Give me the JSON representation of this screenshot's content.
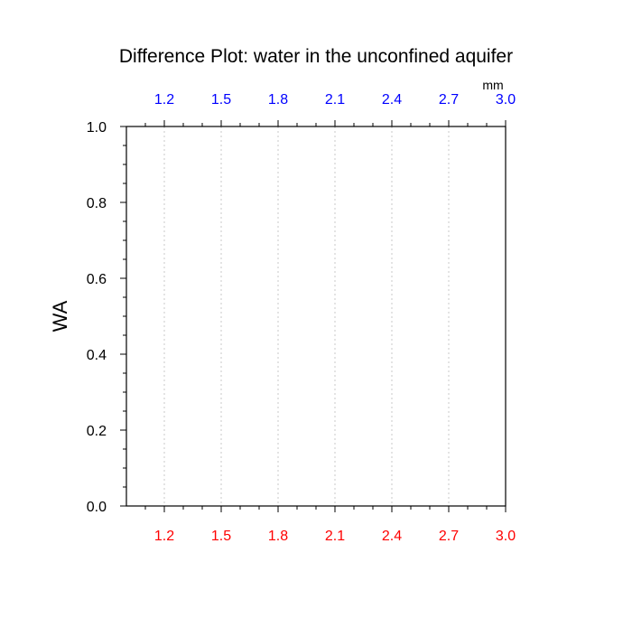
{
  "chart_data": {
    "type": "line",
    "title": "Difference Plot: water in the unconfined aquifer",
    "ylabel": "WA",
    "top_axis_unit": "mm",
    "xlim": [
      1.0,
      3.0
    ],
    "ylim": [
      0.0,
      1.0
    ],
    "x_ticks": [
      "1.2",
      "1.5",
      "1.8",
      "2.1",
      "2.4",
      "2.7",
      "3.0"
    ],
    "y_ticks": [
      "0.0",
      "0.2",
      "0.4",
      "0.6",
      "0.8",
      "1.0"
    ],
    "series": [],
    "grid": "vertical dotted at x ticks",
    "colors": {
      "bottom_ticks": "#ff0000",
      "top_ticks": "#0000ff",
      "axis": "#000000",
      "grid": "#c8c8c8"
    }
  }
}
